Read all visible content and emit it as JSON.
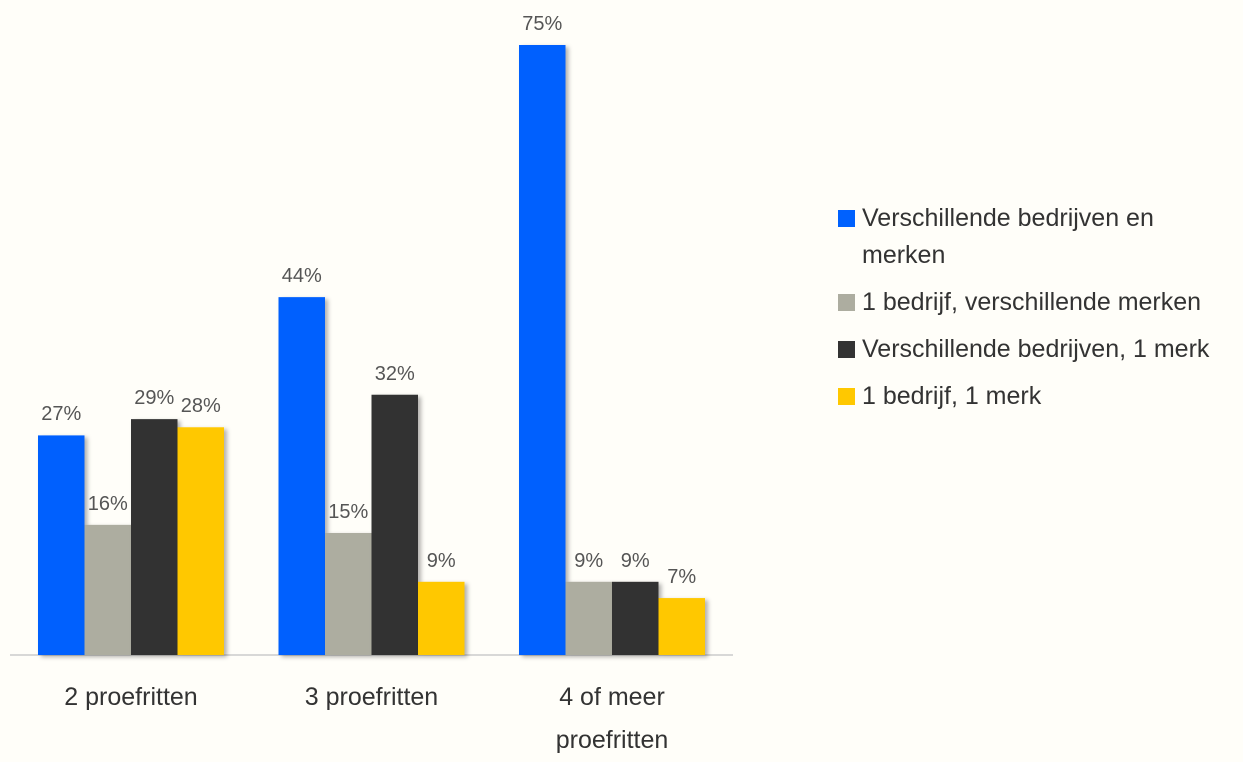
{
  "chart_data": {
    "type": "bar",
    "categories": [
      "2 proefritten",
      "3 proefritten",
      "4 of meer proefritten"
    ],
    "series": [
      {
        "name": "Verschillende bedrijven en merken",
        "color": "#0061fe",
        "values": [
          27,
          44,
          75
        ],
        "value_labels": [
          "27%",
          "44%",
          "75%"
        ]
      },
      {
        "name": "1 bedrijf, verschillende merken",
        "color": "#adada0",
        "values": [
          16,
          15,
          9
        ],
        "value_labels": [
          "16%",
          "15%",
          "9%"
        ]
      },
      {
        "name": "Verschillende bedrijven, 1 merk",
        "color": "#333333",
        "values": [
          29,
          32,
          9
        ],
        "value_labels": [
          "29%",
          "32%",
          "9%"
        ]
      },
      {
        "name": "1 bedrijf, 1 merk",
        "color": "#ffc800",
        "values": [
          28,
          9,
          7
        ],
        "value_labels": [
          "28%",
          "9%",
          "7%"
        ]
      }
    ],
    "legend": "right"
  }
}
